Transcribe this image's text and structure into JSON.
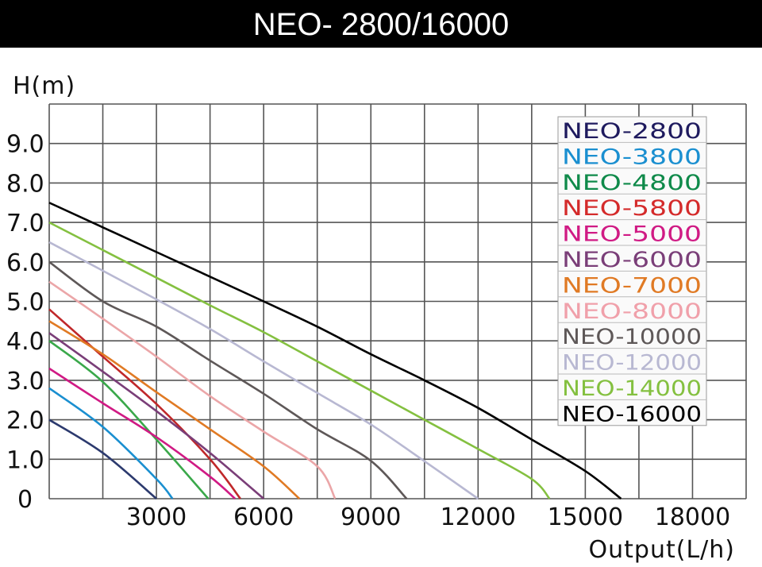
{
  "chart_data": {
    "type": "line",
    "title": "NEO- 2800/16000",
    "xlabel": "Output(L/h)",
    "ylabel": "H(m)",
    "xlim": [
      0,
      19500
    ],
    "ylim": [
      0,
      10
    ],
    "x_ticks": [
      3000,
      6000,
      9000,
      12000,
      15000,
      18000
    ],
    "x_tick_labels": [
      "3000",
      "6000",
      "9000",
      "12000",
      "15000",
      "18000"
    ],
    "y_ticks": [
      0,
      1,
      2,
      3,
      4,
      5,
      6,
      7,
      8,
      9
    ],
    "y_tick_labels": [
      "0",
      "1.0",
      "2.0",
      "3.0",
      "4.0",
      "5.0",
      "6.0",
      "7.0",
      "8.0",
      "9.0"
    ],
    "grid": true,
    "legend_position": "top-right",
    "series": [
      {
        "name": "NEO-2800",
        "color": "#1e1a5e",
        "line_color": "#2c3a6e",
        "points": [
          [
            0,
            2.0
          ],
          [
            1500,
            1.16
          ],
          [
            3000,
            0
          ]
        ]
      },
      {
        "name": "NEO-3800",
        "color": "#1a8fd0",
        "points": [
          [
            0,
            2.8
          ],
          [
            1500,
            1.82
          ],
          [
            3000,
            0.5
          ],
          [
            3450,
            0
          ]
        ]
      },
      {
        "name": "NEO-4800",
        "color": "#0f8a4a",
        "line_color": "#3aa84a",
        "points": [
          [
            0,
            4.0
          ],
          [
            1500,
            2.96
          ],
          [
            3000,
            1.5
          ],
          [
            4450,
            0
          ]
        ]
      },
      {
        "name": "NEO-5800",
        "color": "#d42a2a",
        "line_color": "#c0282a",
        "points": [
          [
            0,
            4.8
          ],
          [
            1500,
            3.6
          ],
          [
            3000,
            2.4
          ],
          [
            4500,
            1.0
          ],
          [
            5350,
            0
          ]
        ]
      },
      {
        "name": "NEO-5000",
        "color": "#d01a84",
        "points": [
          [
            0,
            3.3
          ],
          [
            1500,
            2.42
          ],
          [
            3000,
            1.56
          ],
          [
            4500,
            0.56
          ],
          [
            5200,
            0
          ]
        ]
      },
      {
        "name": "NEO-6000",
        "color": "#7a3e78",
        "points": [
          [
            0,
            4.2
          ],
          [
            1500,
            3.22
          ],
          [
            3000,
            2.22
          ],
          [
            4500,
            1.16
          ],
          [
            6000,
            0
          ]
        ]
      },
      {
        "name": "NEO-7000",
        "color": "#e07a24",
        "points": [
          [
            0,
            4.5
          ],
          [
            1500,
            3.66
          ],
          [
            3000,
            2.7
          ],
          [
            4500,
            1.76
          ],
          [
            6000,
            0.82
          ],
          [
            7000,
            0
          ]
        ]
      },
      {
        "name": "NEO-8000",
        "color": "#f0a0aa",
        "line_color": "#eba6a8",
        "points": [
          [
            0,
            5.5
          ],
          [
            1500,
            4.56
          ],
          [
            3000,
            3.6
          ],
          [
            4500,
            2.6
          ],
          [
            6000,
            1.7
          ],
          [
            7500,
            0.82
          ],
          [
            8000,
            0
          ]
        ]
      },
      {
        "name": "NEO-10000",
        "color": "#5e5858",
        "points": [
          [
            0,
            6.0
          ],
          [
            1500,
            5.0
          ],
          [
            3000,
            4.36
          ],
          [
            4500,
            3.5
          ],
          [
            6000,
            2.66
          ],
          [
            7500,
            1.76
          ],
          [
            9000,
            0.96
          ],
          [
            10000,
            0
          ]
        ]
      },
      {
        "name": "NEO-12000",
        "color": "#b8b8d2",
        "points": [
          [
            0,
            6.5
          ],
          [
            3000,
            5.05
          ],
          [
            4500,
            4.3
          ],
          [
            6000,
            3.48
          ],
          [
            7500,
            2.68
          ],
          [
            9000,
            1.88
          ],
          [
            10500,
            0.95
          ],
          [
            12000,
            0
          ]
        ]
      },
      {
        "name": "NEO-14000",
        "color": "#84c040",
        "points": [
          [
            0,
            7.0
          ],
          [
            3000,
            5.6
          ],
          [
            4500,
            4.9
          ],
          [
            6000,
            4.22
          ],
          [
            7500,
            3.48
          ],
          [
            9000,
            2.74
          ],
          [
            10500,
            2.0
          ],
          [
            12000,
            1.26
          ],
          [
            13500,
            0.5
          ],
          [
            14000,
            0
          ]
        ]
      },
      {
        "name": "NEO-16000",
        "color": "#000000",
        "points": [
          [
            0,
            7.5
          ],
          [
            3000,
            6.25
          ],
          [
            6000,
            5.0
          ],
          [
            7500,
            4.36
          ],
          [
            9000,
            3.66
          ],
          [
            10500,
            3.0
          ],
          [
            12000,
            2.3
          ],
          [
            13500,
            1.5
          ],
          [
            15000,
            0.7
          ],
          [
            16000,
            0
          ]
        ]
      }
    ]
  }
}
